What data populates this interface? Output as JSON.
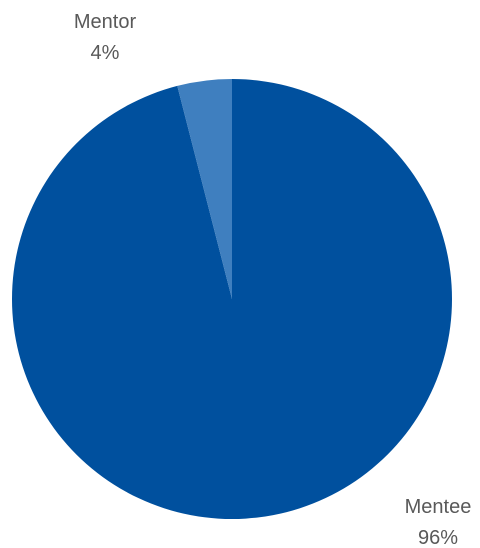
{
  "chart_data": {
    "type": "pie",
    "start_angle": "12 o'clock",
    "direction": "clockwise",
    "slices": [
      {
        "label": "Mentee",
        "value": 96,
        "value_label": "96%",
        "color": "#00509e"
      },
      {
        "label": "Mentor",
        "value": 4,
        "value_label": "4%",
        "color": "#3f7fbf"
      }
    ]
  }
}
